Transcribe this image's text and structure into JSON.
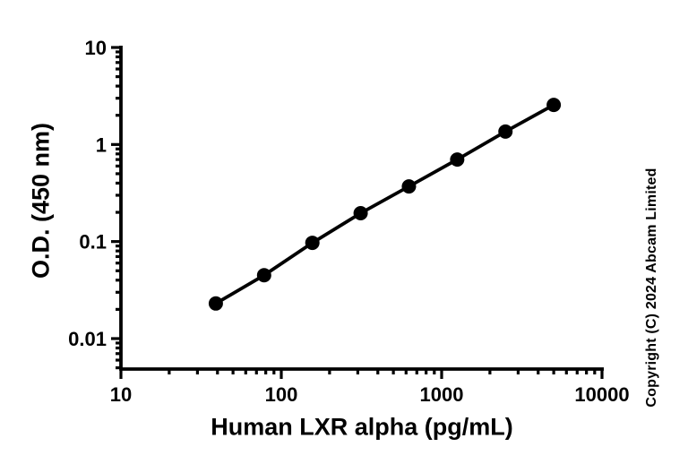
{
  "copyright": "Copyright (C) 2024 Abcam Limited",
  "chart_data": {
    "type": "line",
    "title": "",
    "xlabel": "Human LXR alpha (pg/mL)",
    "ylabel": "O.D. (450 nm)",
    "x_scale": "log",
    "y_scale": "log",
    "x": [
      39.06,
      78.13,
      156.25,
      312.5,
      625,
      1250,
      2500,
      5000
    ],
    "y": [
      0.023,
      0.045,
      0.097,
      0.196,
      0.37,
      0.7,
      1.36,
      2.56
    ],
    "x_ticks": {
      "values": [
        10,
        100,
        1000,
        10000
      ],
      "labels": [
        "10",
        "100",
        "1000",
        "10000"
      ]
    },
    "y_ticks": {
      "values": [
        10,
        1,
        0.1,
        0.01
      ],
      "labels": [
        "10",
        "1",
        "0.1",
        "0.01"
      ]
    },
    "xlim": [
      10,
      10000
    ],
    "ylim": [
      0.00485,
      10
    ],
    "grid": false,
    "legend": false,
    "minor_ticks": true,
    "marker": "circle",
    "colors": {
      "line": "#000000",
      "marker": "#000000",
      "axis": "#000000",
      "background": "#ffffff"
    }
  }
}
